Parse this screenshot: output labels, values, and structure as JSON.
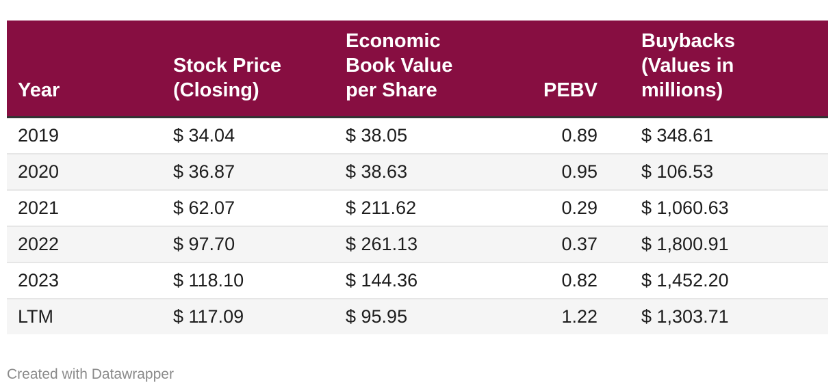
{
  "chart_data": {
    "type": "table",
    "columns": [
      {
        "label": "Year"
      },
      {
        "label": "Stock Price (Closing)"
      },
      {
        "label": "Economic Book Value per Share"
      },
      {
        "label": "PEBV"
      },
      {
        "label": "Buybacks (Values in millions)"
      }
    ],
    "header_lines": [
      [
        "Year"
      ],
      [
        "Stock Price",
        "(Closing)"
      ],
      [
        "Economic",
        "Book Value",
        "per Share"
      ],
      [
        "PEBV"
      ],
      [
        "Buybacks",
        "(Values in",
        "millions)"
      ]
    ],
    "rows": [
      [
        "2019",
        "$ 34.04",
        "$ 38.05",
        "0.89",
        "$ 348.61"
      ],
      [
        "2020",
        "$ 36.87",
        "$ 38.63",
        "0.95",
        "$ 106.53"
      ],
      [
        "2021",
        "$ 62.07",
        "$ 211.62",
        "0.29",
        "$ 1,060.63"
      ],
      [
        "2022",
        "$ 97.70",
        "$ 261.13",
        "0.37",
        "$ 1,800.91"
      ],
      [
        "2023",
        "$ 118.10",
        "$ 144.36",
        "0.82",
        "$ 1,452.20"
      ],
      [
        "LTM",
        "$ 117.09",
        "$ 95.95",
        "1.22",
        "$ 1,303.71"
      ]
    ],
    "header_color": "#870e41"
  },
  "footer": {
    "credit": "Created with Datawrapper"
  }
}
